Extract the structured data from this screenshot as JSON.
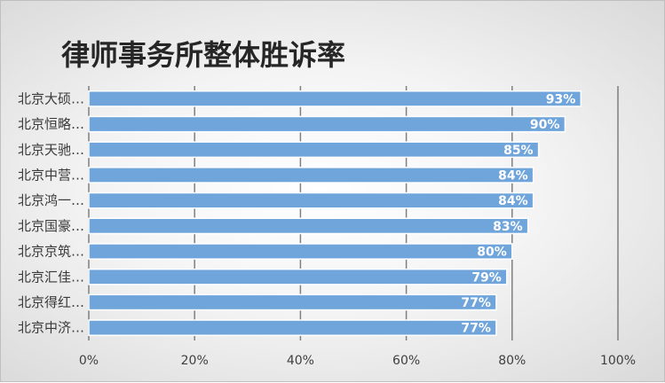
{
  "chart_data": {
    "type": "bar",
    "orientation": "horizontal",
    "title": "律师事务所整体胜诉率",
    "categories": [
      "北京大硕…",
      "北京恒略…",
      "北京天驰…",
      "北京中营…",
      "北京鸿一…",
      "北京国豪…",
      "北京京筑…",
      "北京汇佳…",
      "北京得红…",
      "北京中济…"
    ],
    "values": [
      93,
      90,
      85,
      84,
      84,
      83,
      80,
      79,
      77,
      77
    ],
    "data_labels": [
      "93%",
      "90%",
      "85%",
      "84%",
      "84%",
      "83%",
      "80%",
      "79%",
      "77%",
      "77%"
    ],
    "xlim": [
      0,
      100
    ],
    "x_ticks": [
      0,
      20,
      40,
      60,
      80,
      100
    ],
    "x_tick_labels": [
      "0%",
      "20%",
      "40%",
      "60%",
      "80%",
      "100%"
    ],
    "grid": true,
    "legend": "none",
    "colors": {
      "bar": "#6fa5db",
      "bar_border": "#ffffff",
      "grid": "#7f7f7f",
      "title": "#262626"
    }
  }
}
